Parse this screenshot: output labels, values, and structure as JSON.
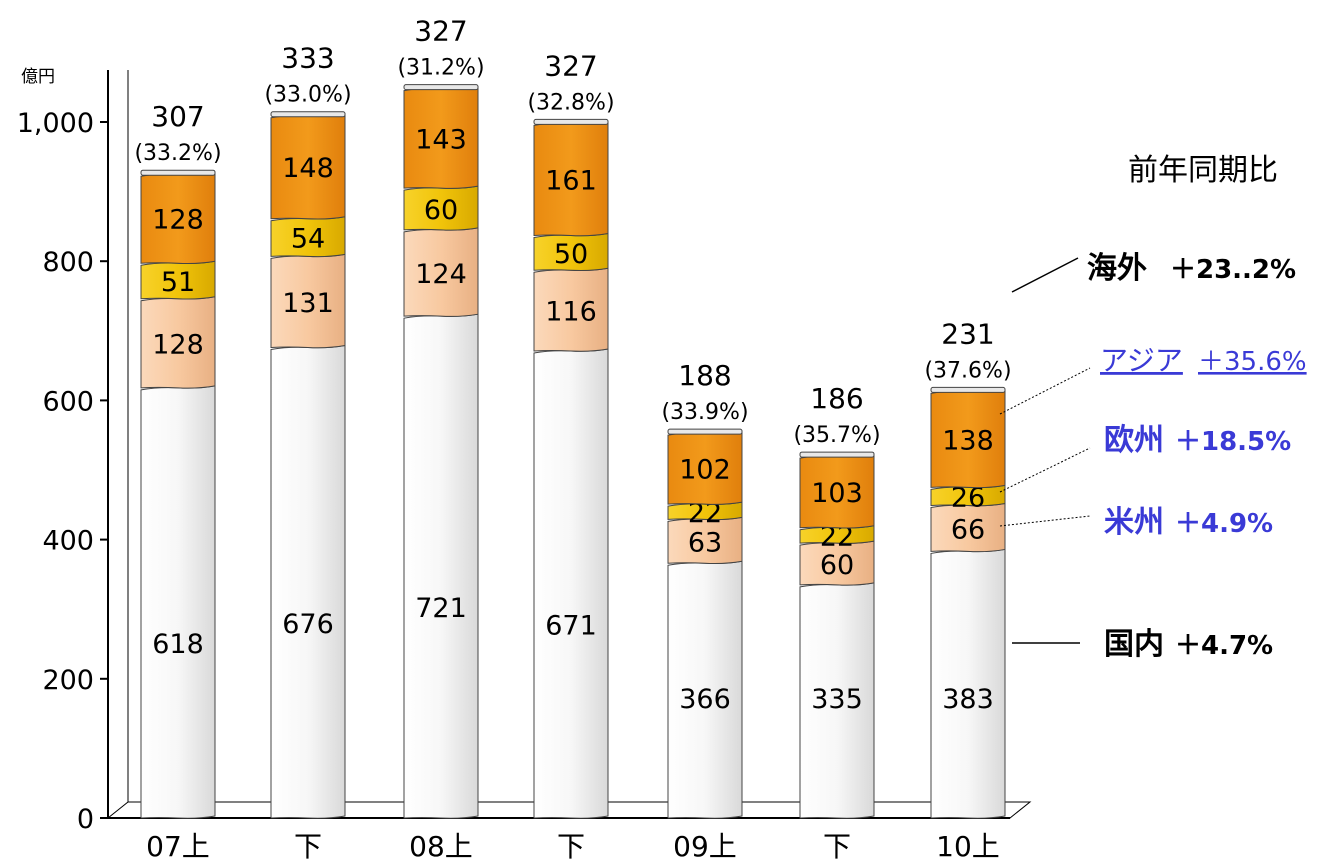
{
  "chart_data": {
    "type": "bar",
    "stacked": true,
    "unit_label": "億円",
    "categories": [
      "07上",
      "下",
      "08上",
      "下",
      "09上",
      "下",
      "10上"
    ],
    "series": [
      {
        "name": "国内",
        "values": [
          618,
          676,
          721,
          671,
          366,
          335,
          383
        ]
      },
      {
        "name": "米州",
        "values": [
          128,
          131,
          124,
          116,
          63,
          60,
          66
        ]
      },
      {
        "name": "欧州",
        "values": [
          51,
          54,
          60,
          50,
          22,
          22,
          26
        ]
      },
      {
        "name": "アジア",
        "values": [
          128,
          148,
          143,
          161,
          102,
          103,
          138
        ]
      }
    ],
    "overseas_totals": [
      "307",
      "333",
      "327",
      "327",
      "188",
      "186",
      "231"
    ],
    "overseas_ratios": [
      "(33.2%)",
      "(33.0%)",
      "(31.2%)",
      "(32.8%)",
      "(33.9%)",
      "(35.7%)",
      "(37.6%)"
    ],
    "ylim": [
      0,
      1000
    ],
    "yticks": [
      "0",
      "200",
      "400",
      "600",
      "800",
      "1,000"
    ],
    "grid": false,
    "legend_title": "前年同期比",
    "annotations": [
      {
        "label": "海外",
        "change": "＋23..2%"
      },
      {
        "label": "アジア",
        "change": "＋35.6%"
      },
      {
        "label": "欧州",
        "change": "＋18.5%"
      },
      {
        "label": "米州",
        "change": "＋4.9%"
      },
      {
        "label": "国内",
        "change": "＋4.7%"
      }
    ],
    "colors": {
      "domestic": "#f2f2f2",
      "americas": "#f8c9a0",
      "europe": "#f1c40a",
      "asia": "#f29a1b",
      "text": "#000000",
      "annotation_blue": "#3a3ad6"
    }
  }
}
